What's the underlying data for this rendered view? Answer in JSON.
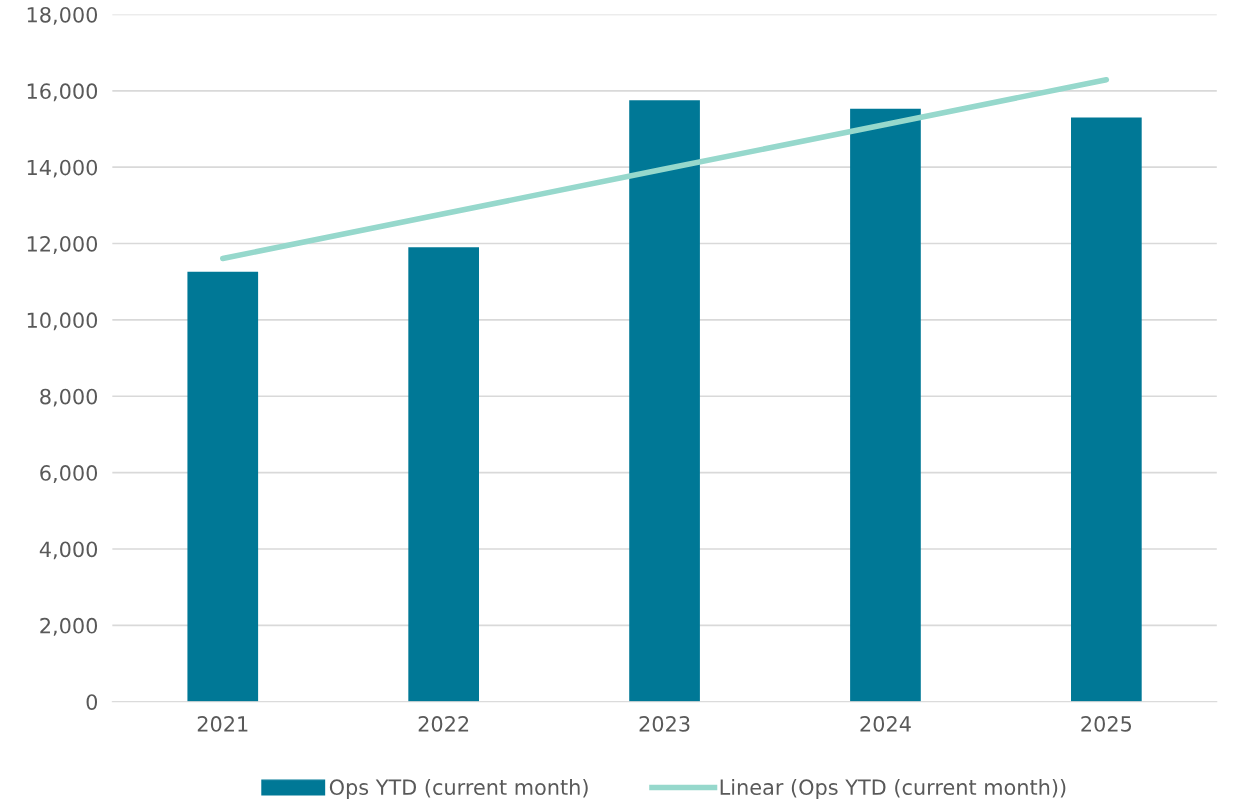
{
  "chart_data": {
    "type": "bar",
    "categories": [
      "2021",
      "2022",
      "2023",
      "2024",
      "2025"
    ],
    "series": [
      {
        "name": "Ops YTD (current month)",
        "color": "#007896",
        "values": [
          11260,
          11900,
          15750,
          15530,
          15300
        ]
      },
      {
        "name": "Linear (Ops YTD (current month))",
        "type": "line",
        "color": "#96d8cc",
        "values": [
          11610,
          12780,
          13950,
          15120,
          16290
        ]
      }
    ],
    "ylim": [
      0,
      18000
    ],
    "yticks": [
      {
        "value": 0,
        "label": "0"
      },
      {
        "value": 2000,
        "label": "2,000"
      },
      {
        "value": 4000,
        "label": "4,000"
      },
      {
        "value": 6000,
        "label": "6,000"
      },
      {
        "value": 8000,
        "label": "8,000"
      },
      {
        "value": 10000,
        "label": "10,000"
      },
      {
        "value": 12000,
        "label": "12,000"
      },
      {
        "value": 14000,
        "label": "14,000"
      },
      {
        "value": 16000,
        "label": "16,000"
      },
      {
        "value": 18000,
        "label": "18,000"
      }
    ],
    "grid": "y",
    "legend": "bottom",
    "marker": "none"
  }
}
